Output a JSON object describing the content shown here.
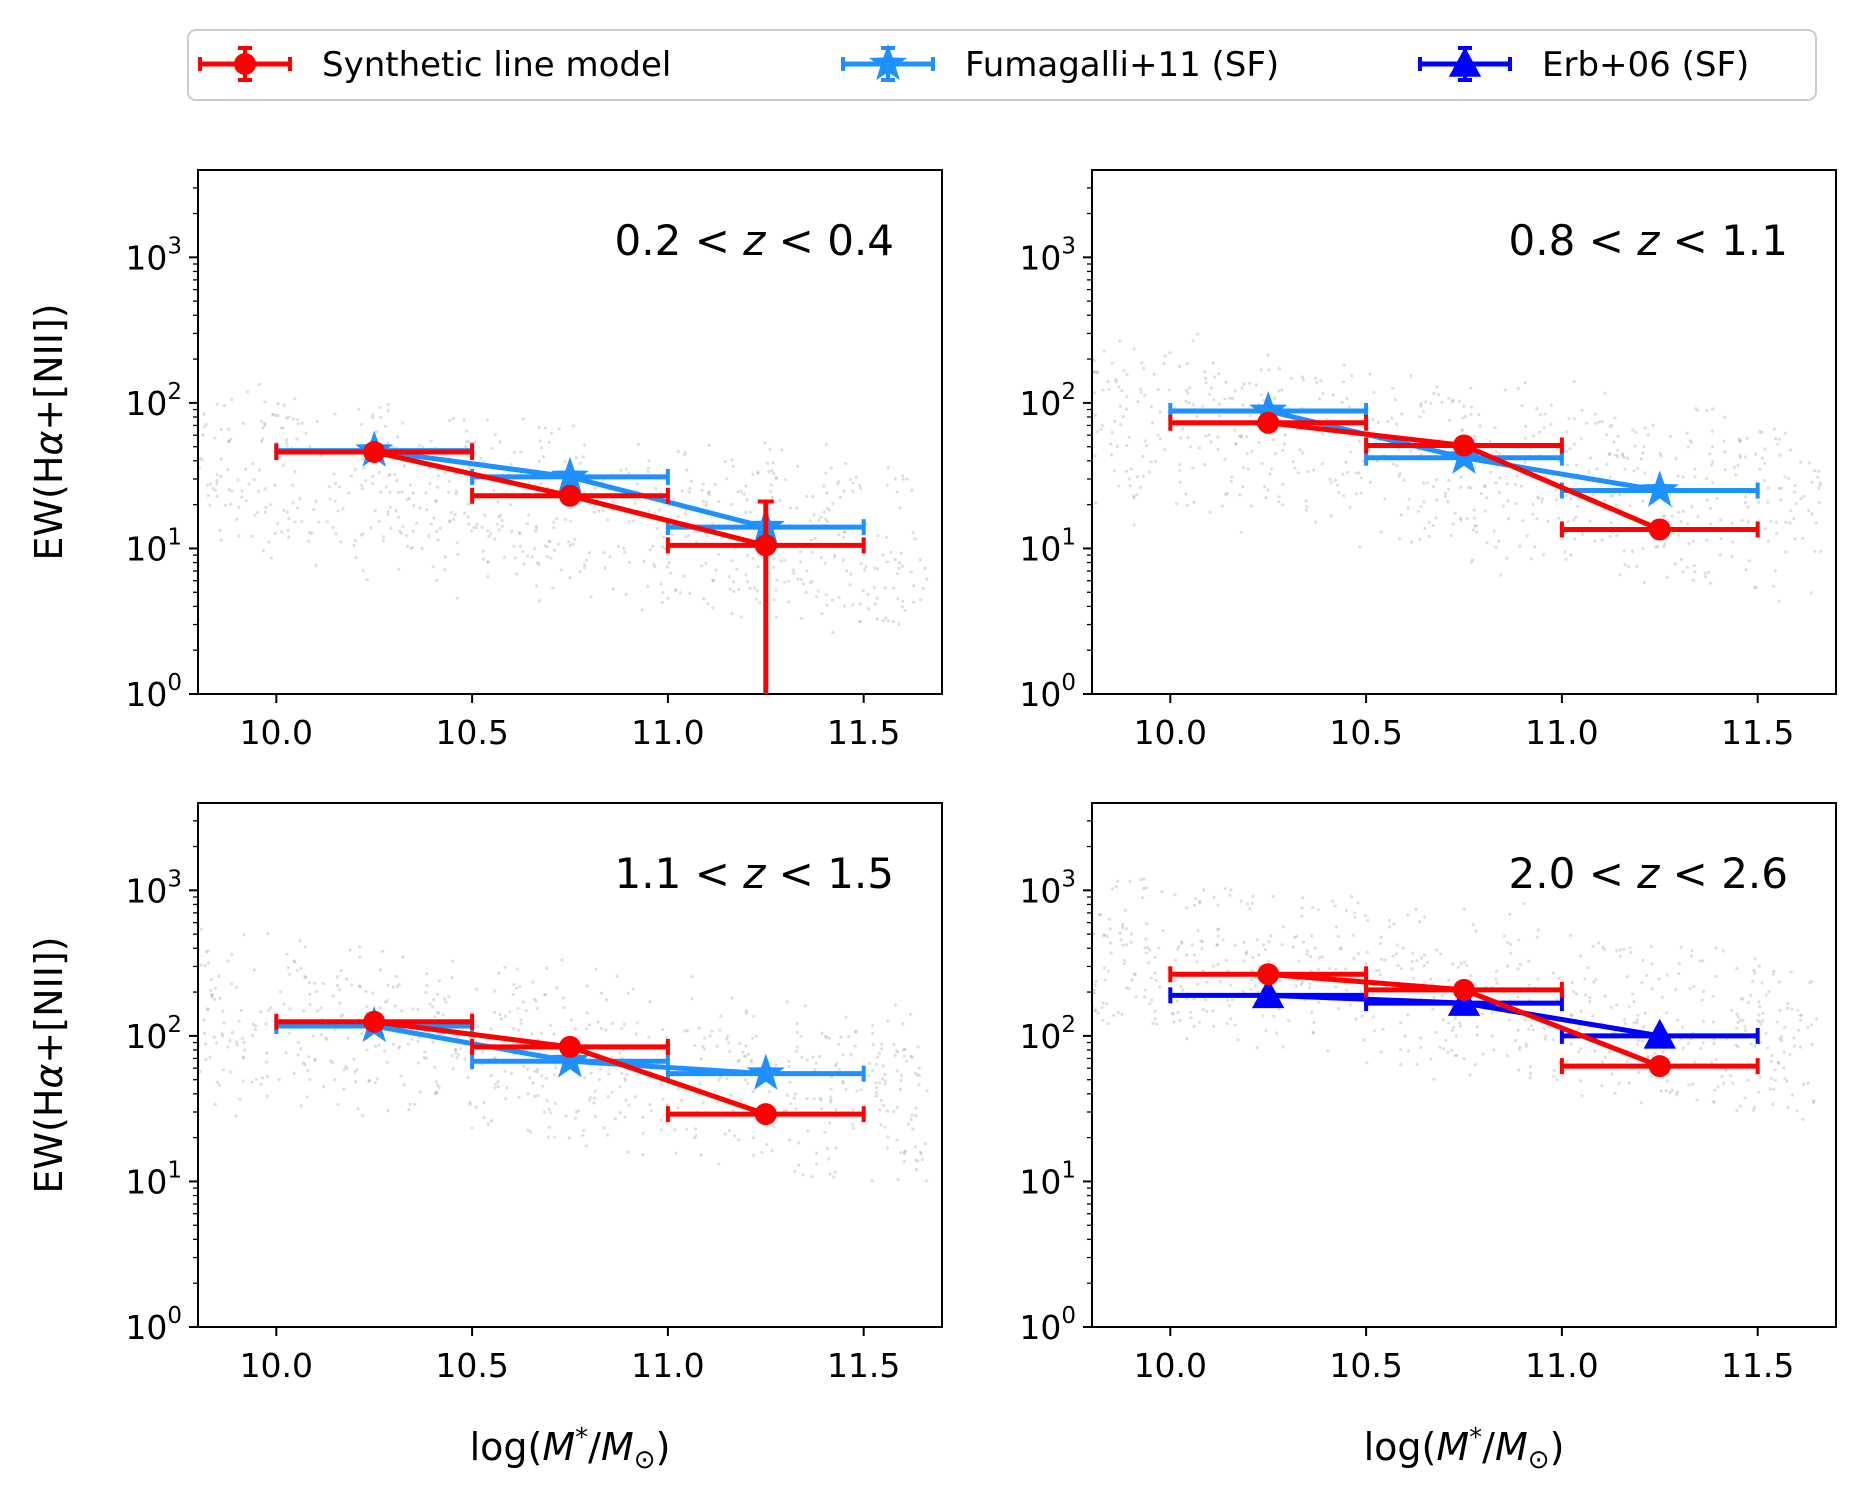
{
  "chart_data": {
    "type": "scatter",
    "legend": {
      "placement": "top-center",
      "entries": [
        {
          "label": "Synthetic line model",
          "color": "#ff0000",
          "marker": "circle"
        },
        {
          "label": "Fumagalli+11 (SF)",
          "color": "#1e90ff",
          "marker": "star"
        },
        {
          "label": "Erb+06 (SF)",
          "color": "#0000ff",
          "marker": "triangle"
        }
      ]
    },
    "xlim": [
      9.8,
      11.7
    ],
    "ylim_log10": [
      0,
      3.6
    ],
    "x_ticks": [
      "10.0",
      "10.5",
      "11.0",
      "11.5"
    ],
    "x_tick_values": [
      10.0,
      10.5,
      11.0,
      11.5
    ],
    "y_tick_exponents": [
      0,
      1,
      2,
      3
    ],
    "y_tick_base": "10",
    "xlabel_prefix": "log(",
    "xlabel_M1": "M",
    "xlabel_star": "*",
    "xlabel_slash": "/",
    "xlabel_M2": "M",
    "xlabel_sun": "⊙",
    "xlabel_suffix": ")",
    "ylabel_prefix": "EW(H",
    "ylabel_alpha": "α",
    "ylabel_suffix": "+[NII])",
    "panels": [
      {
        "label_low": "0.2",
        "label_lt1": "<",
        "label_z": "z",
        "label_lt2": "<",
        "label_high": "0.4",
        "synthetic": [
          {
            "x": 10.25,
            "y": 46,
            "xlo": 10.0,
            "xhi": 10.5
          },
          {
            "x": 10.75,
            "y": 23,
            "xlo": 10.5,
            "xhi": 11.0
          },
          {
            "x": 11.25,
            "y": 10.5,
            "xlo": 11.0,
            "xhi": 11.5,
            "ylo": 0.3,
            "yhi": 21
          }
        ],
        "fumagalli": [
          {
            "x": 10.25,
            "y": 47,
            "xlo": 10.0,
            "xhi": 10.5
          },
          {
            "x": 10.75,
            "y": 31,
            "xlo": 10.5,
            "xhi": 11.0
          },
          {
            "x": 11.25,
            "y": 14,
            "xlo": 11.0,
            "xhi": 11.5
          }
        ],
        "erb": [],
        "background_bands": [
          55,
          88,
          30,
          20,
          13
        ],
        "background_spread": 0.32
      },
      {
        "label_low": "0.8",
        "label_lt1": "<",
        "label_z": "z",
        "label_lt2": "<",
        "label_high": "1.1",
        "synthetic": [
          {
            "x": 10.25,
            "y": 73,
            "xlo": 10.0,
            "xhi": 10.5
          },
          {
            "x": 10.75,
            "y": 51,
            "xlo": 10.5,
            "xhi": 11.0
          },
          {
            "x": 11.25,
            "y": 13.5,
            "xlo": 11.0,
            "xhi": 11.5
          }
        ],
        "fumagalli": [
          {
            "x": 10.25,
            "y": 88,
            "xlo": 10.0,
            "xhi": 10.5
          },
          {
            "x": 10.75,
            "y": 42,
            "xlo": 10.5,
            "xhi": 11.0
          },
          {
            "x": 11.25,
            "y": 25,
            "xlo": 11.0,
            "xhi": 11.5
          }
        ],
        "erb": [],
        "background_bands": [
          180,
          130,
          95,
          70,
          50,
          35,
          22
        ],
        "background_spread": 0.3
      },
      {
        "label_low": "1.1",
        "label_lt1": "<",
        "label_z": "z",
        "label_lt2": "<",
        "label_high": "1.5",
        "synthetic": [
          {
            "x": 10.25,
            "y": 125,
            "xlo": 10.0,
            "xhi": 10.5
          },
          {
            "x": 10.75,
            "y": 84,
            "xlo": 10.5,
            "xhi": 11.0
          },
          {
            "x": 11.25,
            "y": 29,
            "xlo": 11.0,
            "xhi": 11.5
          }
        ],
        "fumagalli": [
          {
            "x": 10.25,
            "y": 117,
            "xlo": 10.0,
            "xhi": 10.5
          },
          {
            "x": 10.75,
            "y": 67,
            "xlo": 10.5,
            "xhi": 11.0
          },
          {
            "x": 11.25,
            "y": 55,
            "xlo": 11.0,
            "xhi": 11.5
          }
        ],
        "erb": [],
        "background_bands": [
          330,
          240,
          180,
          130,
          95,
          70,
          50
        ],
        "background_spread": 0.35
      },
      {
        "label_low": "2.0",
        "label_lt1": "<",
        "label_z": "z",
        "label_lt2": "<",
        "label_high": "2.6",
        "synthetic": [
          {
            "x": 10.25,
            "y": 265,
            "xlo": 10.0,
            "xhi": 10.5
          },
          {
            "x": 10.75,
            "y": 207,
            "xlo": 10.5,
            "xhi": 11.0
          },
          {
            "x": 11.25,
            "y": 62,
            "xlo": 11.0,
            "xhi": 11.5
          }
        ],
        "fumagalli": [],
        "erb": [
          {
            "x": 10.25,
            "y": 190,
            "xlo": 10.0,
            "xhi": 10.5
          },
          {
            "x": 10.75,
            "y": 168,
            "xlo": 10.5,
            "xhi": 11.0
          },
          {
            "x": 11.25,
            "y": 100,
            "xlo": 11.0,
            "xhi": 11.5
          }
        ],
        "background_bands": [
          1000,
          550,
          400,
          300,
          220,
          160,
          120
        ],
        "background_spread": 0.18
      }
    ]
  }
}
